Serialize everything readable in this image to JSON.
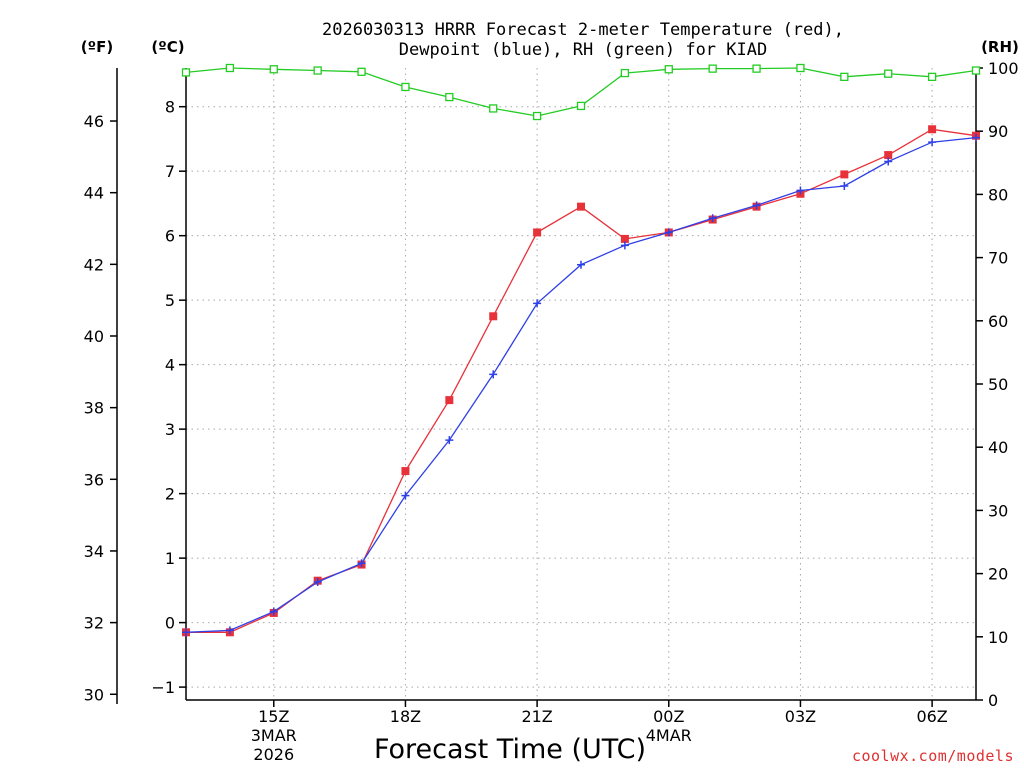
{
  "chart_data": {
    "type": "line",
    "title_line1": "2026030313 HRRR Forecast 2-meter Temperature (red),",
    "title_line2": "Dewpoint (blue), RH (green) for KIAD",
    "unit_left_f": "(ºF)",
    "unit_left_c": "(ºC)",
    "unit_right": "(RH)",
    "xlabel": "Forecast Time (UTC)",
    "watermark": "coolwx.com/models",
    "x_hours": [
      13,
      14,
      15,
      16,
      17,
      18,
      19,
      20,
      21,
      22,
      23,
      24,
      25,
      26,
      27,
      28,
      29,
      30,
      31
    ],
    "xlim": [
      13,
      31
    ],
    "x_ticks": [
      {
        "x": 15,
        "label": "15Z",
        "sub1": "3MAR",
        "sub2": "2026"
      },
      {
        "x": 18,
        "label": "18Z",
        "sub1": "",
        "sub2": ""
      },
      {
        "x": 21,
        "label": "21Z",
        "sub1": "",
        "sub2": ""
      },
      {
        "x": 24,
        "label": "00Z",
        "sub1": "4MAR",
        "sub2": ""
      },
      {
        "x": 27,
        "label": "03Z",
        "sub1": "",
        "sub2": ""
      },
      {
        "x": 30,
        "label": "06Z",
        "sub1": "",
        "sub2": ""
      }
    ],
    "celsius_axis": {
      "ylim": [
        -1.2,
        8.6
      ],
      "ticks": [
        -1,
        0,
        1,
        2,
        3,
        4,
        5,
        6,
        7,
        8
      ],
      "tick_labels": [
        "−1",
        "0",
        "1",
        "2",
        "3",
        "4",
        "5",
        "6",
        "7",
        "8"
      ]
    },
    "fahrenheit_axis": {
      "ticks": [
        30,
        32,
        34,
        36,
        38,
        40,
        42,
        44,
        46
      ],
      "tick_labels": [
        "30",
        "32",
        "34",
        "36",
        "38",
        "40",
        "42",
        "44",
        "46"
      ]
    },
    "rh_axis": {
      "ylim": [
        0,
        100
      ],
      "ticks": [
        0,
        10,
        20,
        30,
        40,
        50,
        60,
        70,
        80,
        90,
        100
      ],
      "tick_labels": [
        "0",
        "10",
        "20",
        "30",
        "40",
        "50",
        "60",
        "70",
        "80",
        "90",
        "100"
      ]
    },
    "series": [
      {
        "name": "Temperature",
        "units": "C",
        "color": "#e8323a",
        "marker": "filled-square",
        "values": [
          -0.15,
          -0.15,
          0.15,
          0.65,
          0.9,
          2.35,
          3.45,
          4.75,
          6.05,
          6.45,
          5.95,
          6.05,
          6.25,
          6.45,
          6.65,
          6.95,
          7.25,
          7.65,
          7.55
        ]
      },
      {
        "name": "Dewpoint",
        "units": "C",
        "color": "#2f3fe8",
        "marker": "plus",
        "values": [
          -0.15,
          -0.12,
          0.17,
          0.63,
          0.92,
          1.97,
          2.83,
          3.85,
          4.95,
          5.55,
          5.85,
          6.05,
          6.27,
          6.47,
          6.7,
          6.77,
          7.15,
          7.45,
          7.52
        ]
      },
      {
        "name": "RH",
        "units": "%",
        "color": "#22cc22",
        "marker": "open-square",
        "values": [
          99.3,
          100,
          99.8,
          99.6,
          99.4,
          97.0,
          95.4,
          93.6,
          92.4,
          94.0,
          99.2,
          99.8,
          99.9,
          99.9,
          100,
          98.6,
          99.1,
          98.6,
          99.6
        ]
      }
    ]
  }
}
